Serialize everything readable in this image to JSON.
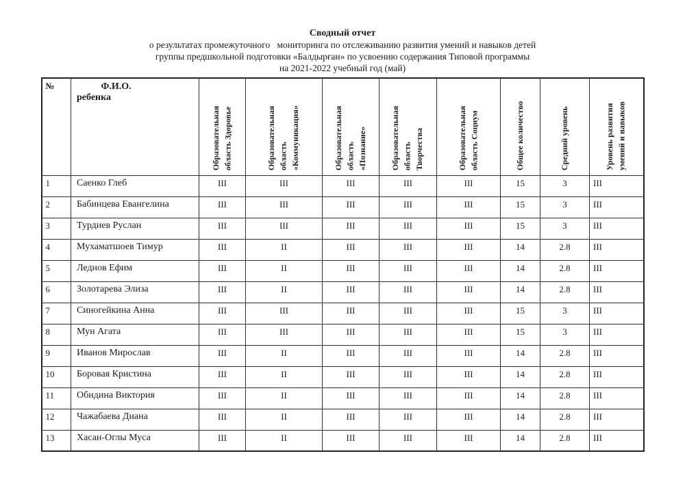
{
  "doc": {
    "title": "Сводный отчет",
    "subtitle_lines": [
      "о результатах промежуточного   мониторинга по отслеживанию развития умений и навыков детей",
      "группы предшкольной подготовки «Балдырған» по усвоению содержания Типовой программы",
      "на 2021-2022 учебный год (май)"
    ]
  },
  "table": {
    "columns": [
      {
        "id": "num",
        "label": "№"
      },
      {
        "id": "name",
        "label": "Ф.И.О.",
        "label2": "ребенка"
      },
      {
        "id": "health",
        "label": "Образовательная\nобласть Здоровье"
      },
      {
        "id": "communication",
        "label": "Образовательная\nобласть\n«Коммуникация»"
      },
      {
        "id": "cognition",
        "label": "Образовательная\nобласть\n«Познание»"
      },
      {
        "id": "creativity",
        "label": "Образовательная\nобласть\nТворчества"
      },
      {
        "id": "socium",
        "label": "Образовательная\nобласть Социум"
      },
      {
        "id": "total",
        "label": "Общее количество"
      },
      {
        "id": "average",
        "label": "Средний уровень"
      },
      {
        "id": "level",
        "label": "Уровень развития\nумений и навыков"
      }
    ],
    "rows": [
      [
        "1",
        "Саенко Глеб",
        "III",
        "III",
        "III",
        "III",
        "III",
        "15",
        "3",
        "III"
      ],
      [
        "2",
        "Бабинцева Евангелина",
        "III",
        "III",
        "III",
        "III",
        "III",
        "15",
        "3",
        "III"
      ],
      [
        "3",
        "Турдиев Руслан",
        "III",
        "III",
        "III",
        "III",
        "III",
        "15",
        "3",
        "III"
      ],
      [
        "4",
        "Мухаматшоев Тимур",
        "III",
        "II",
        "III",
        "III",
        "III",
        "14",
        "2.8",
        "III"
      ],
      [
        "5",
        "Леднов Ефим",
        "III",
        "II",
        "III",
        "III",
        "III",
        "14",
        "2.8",
        "III"
      ],
      [
        "6",
        "Золотарева Элиза",
        "III",
        "II",
        "III",
        "III",
        "III",
        "14",
        "2.8",
        "III"
      ],
      [
        "7",
        "Синогейкина Анна",
        "III",
        "III",
        "III",
        "III",
        "III",
        "15",
        "3",
        "III"
      ],
      [
        "8",
        "Мун Агата",
        "III",
        "III",
        "III",
        "III",
        "III",
        "15",
        "3",
        "III"
      ],
      [
        "9",
        "Иванов Мирослав",
        "III",
        "II",
        "III",
        "III",
        "III",
        "14",
        "2.8",
        "III"
      ],
      [
        "10",
        "Боровая Кристина",
        "III",
        "II",
        "III",
        "III",
        "III",
        "14",
        "2.8",
        "III"
      ],
      [
        "11",
        "Обидина Виктория",
        "III",
        "II",
        "III",
        "III",
        "III",
        "14",
        "2.8",
        "III"
      ],
      [
        "12",
        "Чажабаева Диана",
        "III",
        "II",
        "III",
        "III",
        "III",
        "14",
        "2.8",
        "III"
      ],
      [
        "13",
        "Хасан-Оглы Муса",
        "III",
        "II",
        "III",
        "III",
        "III",
        "14",
        "2.8",
        "III"
      ]
    ]
  }
}
